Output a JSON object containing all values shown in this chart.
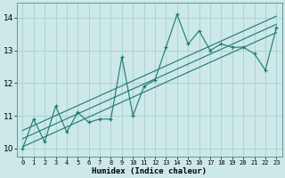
{
  "x": [
    0,
    1,
    2,
    3,
    4,
    5,
    6,
    7,
    8,
    9,
    10,
    11,
    12,
    13,
    14,
    15,
    16,
    17,
    18,
    19,
    20,
    21,
    22,
    23
  ],
  "y": [
    10.0,
    10.9,
    10.2,
    11.3,
    10.5,
    11.1,
    10.8,
    10.9,
    10.9,
    12.8,
    11.0,
    11.9,
    12.1,
    13.1,
    14.1,
    13.2,
    13.6,
    13.0,
    13.2,
    13.1,
    13.1,
    12.9,
    12.4,
    13.7
  ],
  "line_color": "#1a7a6e",
  "bg_color": "#cce8e8",
  "grid_color": "#aacfcf",
  "xlabel": "Humidex (Indice chaleur)",
  "yticks": [
    10,
    11,
    12,
    13,
    14
  ],
  "xticks": [
    0,
    1,
    2,
    3,
    4,
    5,
    6,
    7,
    8,
    9,
    10,
    11,
    12,
    13,
    14,
    15,
    16,
    17,
    18,
    19,
    20,
    21,
    22,
    23
  ],
  "xlim": [
    -0.5,
    23.5
  ],
  "ylim": [
    9.75,
    14.45
  ],
  "trend_lower_y0": 10.05,
  "trend_lower_y1": 13.55,
  "trend_upper_y0": 10.55,
  "trend_upper_y1": 14.05
}
